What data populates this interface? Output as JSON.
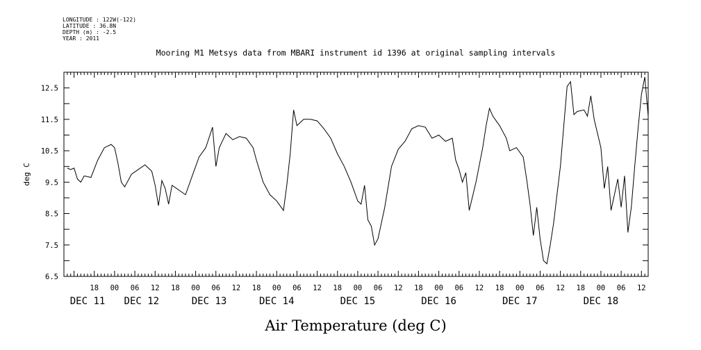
{
  "header": {
    "longitude": "LONGITUDE : 122W(-122)",
    "latitude": "LATITUDE : 36.8N",
    "depth": "DEPTH (m) : -2.5",
    "year": "YEAR : 2011"
  },
  "chart_data": {
    "type": "line",
    "title": "Mooring M1 Metsys data from MBARI instrument id 1396 at original sampling intervals",
    "xlabel": "Air Temperature (deg C)",
    "ylabel": "deg C",
    "xlim": [
      "2011-12-11T09:00",
      "2011-12-18T14:00"
    ],
    "ylim": [
      6.5,
      13.0
    ],
    "y_ticks": [
      6.5,
      7.5,
      8.5,
      9.5,
      10.5,
      11.5,
      12.5
    ],
    "x_hour_ticks": [
      {
        "t": "2011-12-11T18:00",
        "label": "18"
      },
      {
        "t": "2011-12-12T00:00",
        "label": "00"
      },
      {
        "t": "2011-12-12T06:00",
        "label": "06"
      },
      {
        "t": "2011-12-12T12:00",
        "label": "12"
      },
      {
        "t": "2011-12-12T18:00",
        "label": "18"
      },
      {
        "t": "2011-12-13T00:00",
        "label": "00"
      },
      {
        "t": "2011-12-13T06:00",
        "label": "06"
      },
      {
        "t": "2011-12-13T12:00",
        "label": "12"
      },
      {
        "t": "2011-12-13T18:00",
        "label": "18"
      },
      {
        "t": "2011-12-14T00:00",
        "label": "00"
      },
      {
        "t": "2011-12-14T06:00",
        "label": "06"
      },
      {
        "t": "2011-12-14T12:00",
        "label": "12"
      },
      {
        "t": "2011-12-14T18:00",
        "label": "18"
      },
      {
        "t": "2011-12-15T00:00",
        "label": "00"
      },
      {
        "t": "2011-12-15T06:00",
        "label": "06"
      },
      {
        "t": "2011-12-15T12:00",
        "label": "12"
      },
      {
        "t": "2011-12-15T18:00",
        "label": "18"
      },
      {
        "t": "2011-12-16T00:00",
        "label": "00"
      },
      {
        "t": "2011-12-16T06:00",
        "label": "06"
      },
      {
        "t": "2011-12-16T12:00",
        "label": "12"
      },
      {
        "t": "2011-12-16T18:00",
        "label": "18"
      },
      {
        "t": "2011-12-17T00:00",
        "label": "00"
      },
      {
        "t": "2011-12-17T06:00",
        "label": "06"
      },
      {
        "t": "2011-12-17T12:00",
        "label": "12"
      },
      {
        "t": "2011-12-17T18:00",
        "label": "18"
      },
      {
        "t": "2011-12-18T00:00",
        "label": "00"
      },
      {
        "t": "2011-12-18T06:00",
        "label": "06"
      },
      {
        "t": "2011-12-18T12:00",
        "label": "12"
      }
    ],
    "x_date_labels": [
      {
        "t": "2011-12-11T16:00",
        "label": "DEC 11"
      },
      {
        "t": "2011-12-12T08:00",
        "label": "DEC 12"
      },
      {
        "t": "2011-12-13T04:00",
        "label": "DEC 13"
      },
      {
        "t": "2011-12-14T00:00",
        "label": "DEC 14"
      },
      {
        "t": "2011-12-15T00:00",
        "label": "DEC 15"
      },
      {
        "t": "2011-12-16T00:00",
        "label": "DEC 16"
      },
      {
        "t": "2011-12-17T00:00",
        "label": "DEC 17"
      },
      {
        "t": "2011-12-18T00:00",
        "label": "DEC 18"
      }
    ],
    "grid": false,
    "series": [
      {
        "color": "#000000",
        "points": [
          [
            "2011-12-11T10:00",
            9.95
          ],
          [
            "2011-12-11T11:00",
            9.9
          ],
          [
            "2011-12-11T12:00",
            9.95
          ],
          [
            "2011-12-11T13:00",
            9.6
          ],
          [
            "2011-12-11T14:00",
            9.5
          ],
          [
            "2011-12-11T15:00",
            9.7
          ],
          [
            "2011-12-11T17:00",
            9.65
          ],
          [
            "2011-12-11T19:00",
            10.2
          ],
          [
            "2011-12-11T21:00",
            10.6
          ],
          [
            "2011-12-11T23:00",
            10.7
          ],
          [
            "2011-12-12T00:00",
            10.6
          ],
          [
            "2011-12-12T01:00",
            10.1
          ],
          [
            "2011-12-12T02:00",
            9.5
          ],
          [
            "2011-12-12T03:00",
            9.35
          ],
          [
            "2011-12-12T05:00",
            9.75
          ],
          [
            "2011-12-12T07:00",
            9.9
          ],
          [
            "2011-12-12T09:00",
            10.05
          ],
          [
            "2011-12-12T11:00",
            9.85
          ],
          [
            "2011-12-12T12:00",
            9.4
          ],
          [
            "2011-12-12T13:00",
            8.75
          ],
          [
            "2011-12-12T14:00",
            9.55
          ],
          [
            "2011-12-12T15:00",
            9.3
          ],
          [
            "2011-12-12T16:00",
            8.8
          ],
          [
            "2011-12-12T17:00",
            9.4
          ],
          [
            "2011-12-12T19:00",
            9.25
          ],
          [
            "2011-12-12T21:00",
            9.1
          ],
          [
            "2011-12-12T23:00",
            9.7
          ],
          [
            "2011-12-13T01:00",
            10.3
          ],
          [
            "2011-12-13T03:00",
            10.6
          ],
          [
            "2011-12-13T05:00",
            11.25
          ],
          [
            "2011-12-13T06:00",
            10.0
          ],
          [
            "2011-12-13T07:00",
            10.6
          ],
          [
            "2011-12-13T09:00",
            11.05
          ],
          [
            "2011-12-13T11:00",
            10.85
          ],
          [
            "2011-12-13T13:00",
            10.95
          ],
          [
            "2011-12-13T15:00",
            10.9
          ],
          [
            "2011-12-13T17:00",
            10.6
          ],
          [
            "2011-12-13T18:00",
            10.2
          ],
          [
            "2011-12-13T20:00",
            9.5
          ],
          [
            "2011-12-13T22:00",
            9.1
          ],
          [
            "2011-12-14T00:00",
            8.9
          ],
          [
            "2011-12-14T01:00",
            8.75
          ],
          [
            "2011-12-14T02:00",
            8.6
          ],
          [
            "2011-12-14T03:00",
            9.4
          ],
          [
            "2011-12-14T04:00",
            10.4
          ],
          [
            "2011-12-14T05:00",
            11.8
          ],
          [
            "2011-12-14T06:00",
            11.3
          ],
          [
            "2011-12-14T08:00",
            11.5
          ],
          [
            "2011-12-14T10:00",
            11.5
          ],
          [
            "2011-12-14T12:00",
            11.45
          ],
          [
            "2011-12-14T14:00",
            11.2
          ],
          [
            "2011-12-14T16:00",
            10.9
          ],
          [
            "2011-12-14T18:00",
            10.4
          ],
          [
            "2011-12-14T20:00",
            10.0
          ],
          [
            "2011-12-14T22:00",
            9.5
          ],
          [
            "2011-12-15T00:00",
            8.9
          ],
          [
            "2011-12-15T01:00",
            8.8
          ],
          [
            "2011-12-15T02:00",
            9.4
          ],
          [
            "2011-12-15T03:00",
            8.3
          ],
          [
            "2011-12-15T04:00",
            8.1
          ],
          [
            "2011-12-15T05:00",
            7.5
          ],
          [
            "2011-12-15T06:00",
            7.7
          ],
          [
            "2011-12-15T08:00",
            8.7
          ],
          [
            "2011-12-15T10:00",
            10.0
          ],
          [
            "2011-12-15T12:00",
            10.55
          ],
          [
            "2011-12-15T14:00",
            10.8
          ],
          [
            "2011-12-15T16:00",
            11.2
          ],
          [
            "2011-12-15T18:00",
            11.3
          ],
          [
            "2011-12-15T20:00",
            11.25
          ],
          [
            "2011-12-15T22:00",
            10.9
          ],
          [
            "2011-12-16T00:00",
            11.0
          ],
          [
            "2011-12-16T02:00",
            10.8
          ],
          [
            "2011-12-16T04:00",
            10.9
          ],
          [
            "2011-12-16T05:00",
            10.2
          ],
          [
            "2011-12-16T06:00",
            9.9
          ],
          [
            "2011-12-16T07:00",
            9.5
          ],
          [
            "2011-12-16T08:00",
            9.8
          ],
          [
            "2011-12-16T09:00",
            8.6
          ],
          [
            "2011-12-16T11:00",
            9.5
          ],
          [
            "2011-12-16T13:00",
            10.6
          ],
          [
            "2011-12-16T14:00",
            11.3
          ],
          [
            "2011-12-16T15:00",
            11.85
          ],
          [
            "2011-12-16T16:00",
            11.6
          ],
          [
            "2011-12-16T18:00",
            11.3
          ],
          [
            "2011-12-16T20:00",
            10.9
          ],
          [
            "2011-12-16T21:00",
            10.5
          ],
          [
            "2011-12-16T23:00",
            10.6
          ],
          [
            "2011-12-17T01:00",
            10.3
          ],
          [
            "2011-12-17T02:00",
            9.6
          ],
          [
            "2011-12-17T03:00",
            8.8
          ],
          [
            "2011-12-17T04:00",
            7.8
          ],
          [
            "2011-12-17T05:00",
            8.7
          ],
          [
            "2011-12-17T06:00",
            7.7
          ],
          [
            "2011-12-17T07:00",
            7.0
          ],
          [
            "2011-12-17T08:00",
            6.9
          ],
          [
            "2011-12-17T09:00",
            7.5
          ],
          [
            "2011-12-17T10:00",
            8.2
          ],
          [
            "2011-12-17T11:00",
            9.1
          ],
          [
            "2011-12-17T12:00",
            10.0
          ],
          [
            "2011-12-17T13:00",
            11.3
          ],
          [
            "2011-12-17T14:00",
            12.55
          ],
          [
            "2011-12-17T15:00",
            12.7
          ],
          [
            "2011-12-17T16:00",
            11.65
          ],
          [
            "2011-12-17T17:00",
            11.75
          ],
          [
            "2011-12-17T19:00",
            11.8
          ],
          [
            "2011-12-17T20:00",
            11.6
          ],
          [
            "2011-12-17T21:00",
            12.25
          ],
          [
            "2011-12-17T22:00",
            11.5
          ],
          [
            "2011-12-18T00:00",
            10.6
          ],
          [
            "2011-12-18T01:00",
            9.3
          ],
          [
            "2011-12-18T02:00",
            10.0
          ],
          [
            "2011-12-18T03:00",
            8.6
          ],
          [
            "2011-12-18T04:00",
            9.1
          ],
          [
            "2011-12-18T05:00",
            9.6
          ],
          [
            "2011-12-18T06:00",
            8.7
          ],
          [
            "2011-12-18T07:00",
            9.7
          ],
          [
            "2011-12-18T08:00",
            7.9
          ],
          [
            "2011-12-18T09:00",
            8.7
          ],
          [
            "2011-12-18T10:00",
            10.0
          ],
          [
            "2011-12-18T11:00",
            11.2
          ],
          [
            "2011-12-18T12:00",
            12.3
          ],
          [
            "2011-12-18T13:00",
            12.85
          ],
          [
            "2011-12-18T14:00",
            11.6
          ]
        ]
      }
    ]
  }
}
